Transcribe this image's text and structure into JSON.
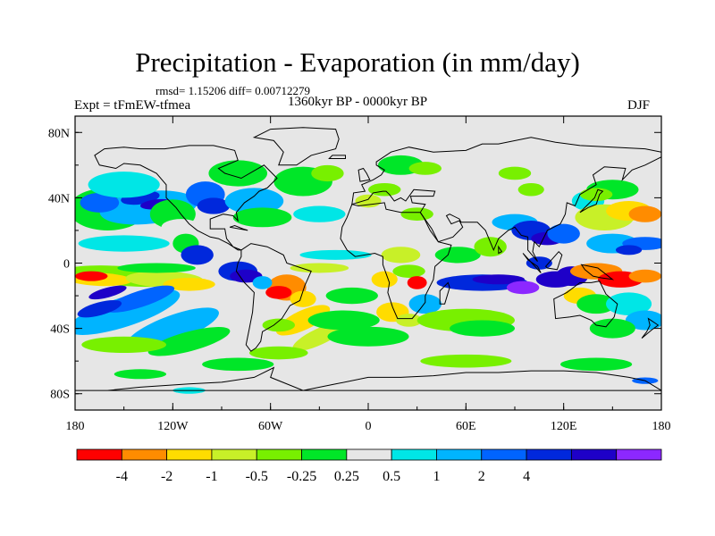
{
  "header": {
    "title": "Precipitation - Evaporation (in mm/day)",
    "stats": "rmsd= 1.15206 diff= 0.00712279",
    "period": "1360kyr BP - 0000kyr BP",
    "experiment": "Expt = tFmEW-tfmea",
    "season": "DJF"
  },
  "map": {
    "projection": "cylindrical equidistant",
    "lon_range": [
      -180,
      180
    ],
    "lat_range": [
      -90,
      90
    ],
    "lon_ticks": [
      {
        "lon": -180,
        "label": "180"
      },
      {
        "lon": -120,
        "label": "120W"
      },
      {
        "lon": -60,
        "label": "60W"
      },
      {
        "lon": 0,
        "label": "0"
      },
      {
        "lon": 60,
        "label": "60E"
      },
      {
        "lon": 120,
        "label": "120E"
      },
      {
        "lon": 180,
        "label": "180"
      }
    ],
    "lat_ticks": [
      {
        "lat": 80,
        "label": "80N"
      },
      {
        "lat": 40,
        "label": "40N"
      },
      {
        "lat": 0,
        "label": "0"
      },
      {
        "lat": -40,
        "label": "40S"
      },
      {
        "lat": -80,
        "label": "80S"
      }
    ],
    "background_color": "#e6e6e6"
  },
  "colorbar": {
    "colors": [
      "#ff0000",
      "#ff8c00",
      "#ffdc00",
      "#c8f028",
      "#78f000",
      "#00e628",
      "#e6e6e6",
      "#00e6e6",
      "#00b4ff",
      "#0064ff",
      "#0028dc",
      "#1e00c8",
      "#8c28ff"
    ],
    "labels": [
      "-4",
      "-2",
      "-1",
      "-0.5",
      "-0.25",
      "0.25",
      "0.5",
      "1",
      "2",
      "4"
    ]
  }
}
